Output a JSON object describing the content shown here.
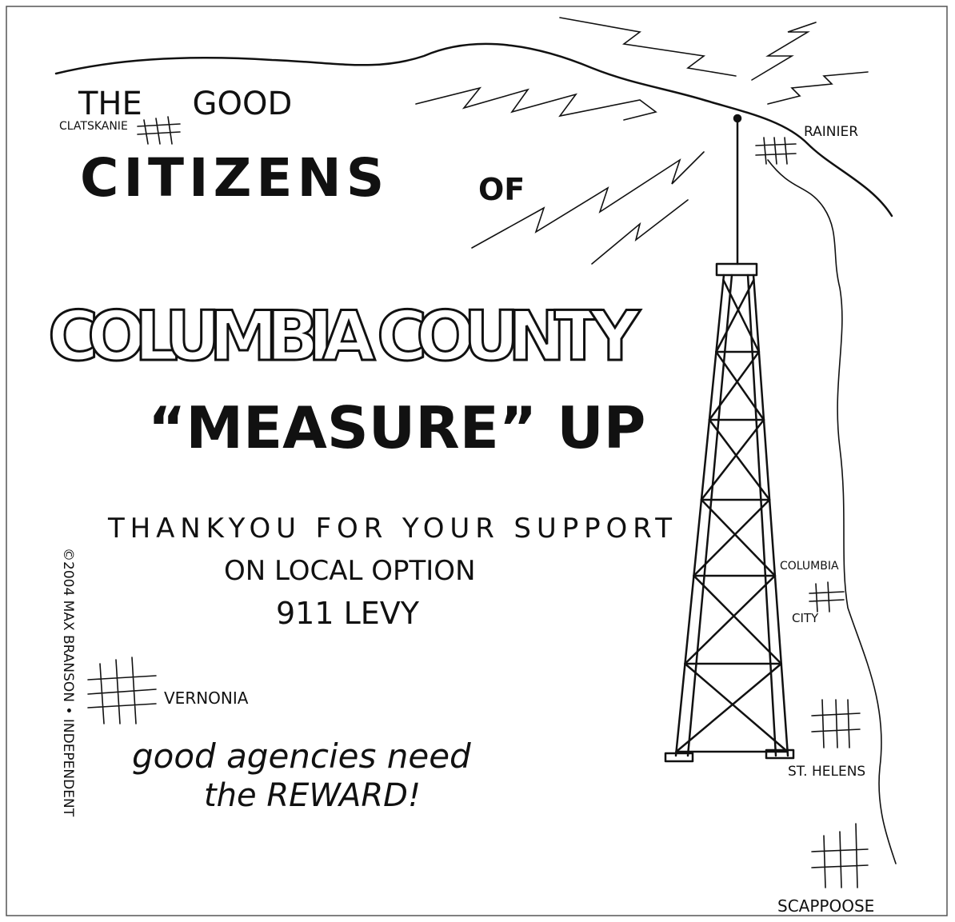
{
  "header": {
    "line1": "THE GOOD",
    "line2": "CITIZENS",
    "line3": "OF",
    "line4": "COLUMBIA COUNTY",
    "line5": "“MEASURE” UP"
  },
  "message": {
    "lines": [
      "THANKYOU FOR YOUR SUPPORT",
      "ON LOCAL OPTION",
      "911 LEVY"
    ]
  },
  "tagline": {
    "lines": [
      "good agencies need",
      "the REWARD!"
    ]
  },
  "places": [
    "CLATSKANIE",
    "RAINIER",
    "COLUMBIA",
    "CITY",
    "VERNONIA",
    "ST. HELENS",
    "SCAPPOOSE"
  ],
  "credit": "©2004 MAX BRANSON • INDEPENDENT"
}
